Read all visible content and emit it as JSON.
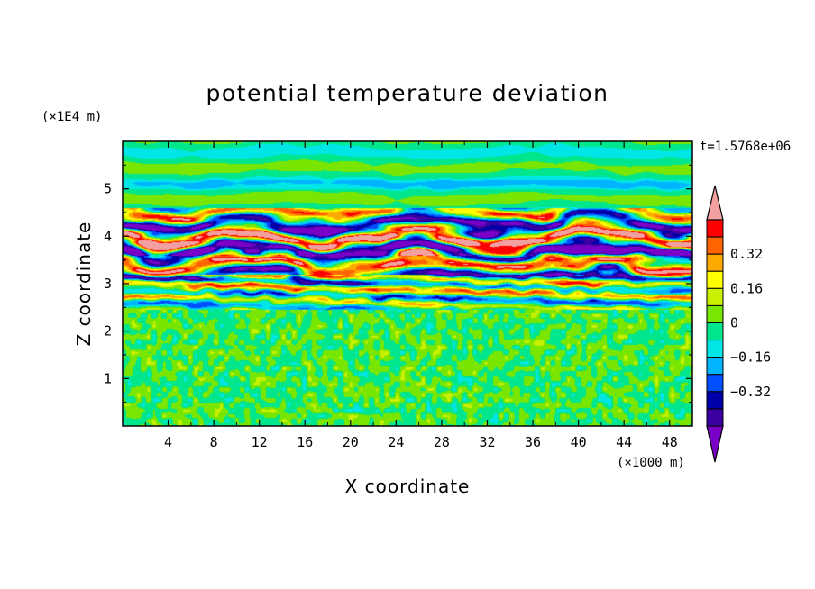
{
  "chart_data": {
    "type": "heatmap",
    "title": "potential temperature deviation",
    "xlabel": "X coordinate",
    "ylabel": "Z coordinate",
    "x_unit_label": "(×1000 m)",
    "y_unit_label": "(×1E4 m)",
    "time_label": "t=1.5768e+06",
    "xlim": [
      0,
      50
    ],
    "ylim": [
      0,
      6
    ],
    "x_ticks": [
      4,
      8,
      12,
      16,
      20,
      24,
      28,
      32,
      36,
      40,
      44,
      48
    ],
    "y_ticks": [
      1,
      2,
      3,
      4,
      5
    ],
    "colorbar": {
      "levels": [
        -0.48,
        -0.4,
        -0.32,
        -0.24,
        -0.16,
        -0.08,
        0,
        0.08,
        0.16,
        0.24,
        0.32,
        0.4,
        0.48
      ],
      "labeled_ticks": [
        "0.32",
        "0.16",
        "0",
        "−0.16",
        "−0.32"
      ],
      "labeled_values": [
        0.32,
        0.16,
        0,
        -0.16,
        -0.32
      ],
      "colors": [
        "#7a00c8",
        "#3c00a0",
        "#0000aa",
        "#0050ff",
        "#00b4ff",
        "#00e6e6",
        "#00e68c",
        "#78e600",
        "#c8f000",
        "#ffff00",
        "#ffaa00",
        "#ff6400",
        "#ff0000",
        "#f2a0a0"
      ],
      "extend": "both"
    },
    "field_description_by_height": [
      {
        "z_range": [
          0,
          2.5
        ],
        "pattern": "small-scale noise",
        "value_range": [
          -0.08,
          0.08
        ]
      },
      {
        "z_range": [
          2.5,
          4.6
        ],
        "pattern": "strong layered waves",
        "value_range": [
          -0.48,
          0.48
        ]
      },
      {
        "z_range": [
          4.6,
          6.0
        ],
        "pattern": "weak horizontal bands",
        "value_range": [
          -0.16,
          0.08
        ]
      }
    ]
  }
}
